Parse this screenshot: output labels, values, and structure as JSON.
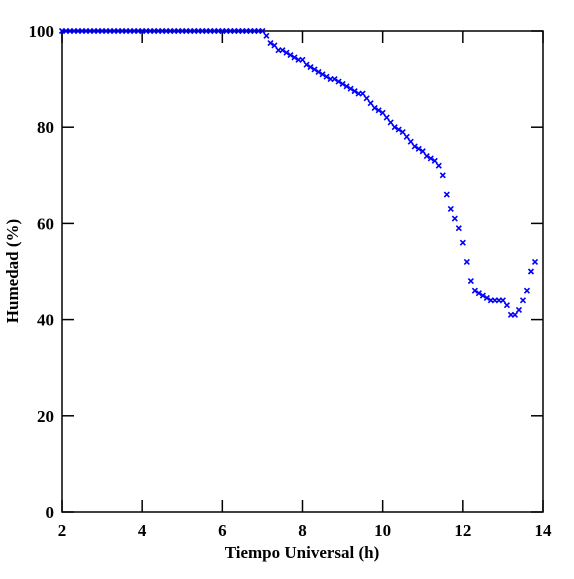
{
  "chart_data": {
    "type": "scatter",
    "xlabel": "Tiempo Universal (h)",
    "ylabel": "Humedad (%)",
    "color": "#0000ff",
    "marker": "x",
    "xlim": [
      2,
      14
    ],
    "xticks": [
      2,
      4,
      6,
      8,
      10,
      12,
      14
    ],
    "ylim": [
      0,
      100
    ],
    "yticks": [
      0,
      20,
      40,
      60,
      80,
      100
    ],
    "x": [
      2.0,
      2.1,
      2.2,
      2.3,
      2.4,
      2.5,
      2.6,
      2.7,
      2.8,
      2.9,
      3.0,
      3.1,
      3.2,
      3.3,
      3.4,
      3.5,
      3.6,
      3.7,
      3.8,
      3.9,
      4.0,
      4.1,
      4.2,
      4.3,
      4.4,
      4.5,
      4.6,
      4.7,
      4.8,
      4.9,
      5.0,
      5.1,
      5.2,
      5.3,
      5.4,
      5.5,
      5.6,
      5.7,
      5.8,
      5.9,
      6.0,
      6.1,
      6.2,
      6.3,
      6.4,
      6.5,
      6.6,
      6.7,
      6.8,
      6.9,
      7.0,
      7.1,
      7.2,
      7.3,
      7.4,
      7.5,
      7.6,
      7.7,
      7.8,
      7.9,
      8.0,
      8.1,
      8.2,
      8.3,
      8.4,
      8.5,
      8.6,
      8.7,
      8.8,
      8.9,
      9.0,
      9.1,
      9.2,
      9.3,
      9.4,
      9.5,
      9.6,
      9.7,
      9.8,
      9.9,
      10.0,
      10.1,
      10.2,
      10.3,
      10.4,
      10.5,
      10.6,
      10.7,
      10.8,
      10.9,
      11.0,
      11.1,
      11.2,
      11.3,
      11.4,
      11.5,
      11.6,
      11.7,
      11.8,
      11.9,
      12.0,
      12.1,
      12.2,
      12.3,
      12.4,
      12.5,
      12.6,
      12.7,
      12.8,
      12.9,
      13.0,
      13.1,
      13.2,
      13.3,
      13.4,
      13.5,
      13.6,
      13.7,
      13.8
    ],
    "values": [
      100,
      100,
      100,
      100,
      100,
      100,
      100,
      100,
      100,
      100,
      100,
      100,
      100,
      100,
      100,
      100,
      100,
      100,
      100,
      100,
      100,
      100,
      100,
      100,
      100,
      100,
      100,
      100,
      100,
      100,
      100,
      100,
      100,
      100,
      100,
      100,
      100,
      100,
      100,
      100,
      100,
      100,
      100,
      100,
      100,
      100,
      100,
      100,
      100,
      100,
      100,
      99,
      97.5,
      97,
      96,
      96,
      95.5,
      95,
      94.5,
      94,
      94,
      93,
      92.5,
      92,
      91.5,
      91,
      90.5,
      90,
      90,
      89.5,
      89,
      88.5,
      88,
      87.5,
      87,
      87,
      86,
      85,
      84,
      83.5,
      83,
      82,
      81,
      80,
      79.5,
      79,
      78,
      77,
      76,
      75.5,
      75,
      74,
      73.5,
      73,
      72,
      70,
      66,
      63,
      61,
      59,
      56,
      52,
      48,
      46,
      45.5,
      45,
      44.5,
      44,
      44,
      44,
      44,
      43,
      41,
      41,
      42,
      44,
      46,
      50,
      52
    ]
  }
}
